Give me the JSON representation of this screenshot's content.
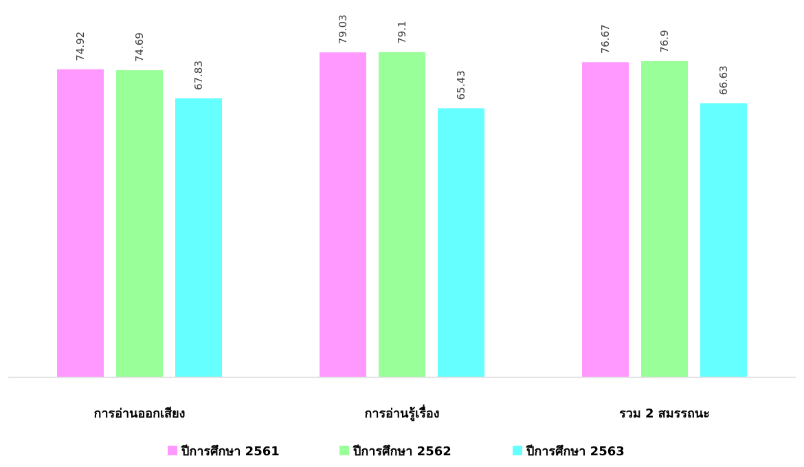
{
  "chart_data": {
    "type": "bar",
    "title": "",
    "xlabel": "",
    "ylabel": "",
    "categories": [
      "การอ่านออกเสียง",
      "การอ่านรู้เรื่อง",
      "รวม 2 สมรรถนะ"
    ],
    "series": [
      {
        "name": "ปีการศึกษา 2561",
        "values": [
          74.92,
          79.03,
          76.67
        ],
        "labels": [
          "74.92",
          "79.03",
          "76.67"
        ],
        "color": "#FF99FF"
      },
      {
        "name": "ปีการศึกษา 2562",
        "values": [
          74.69,
          79.1,
          76.9
        ],
        "labels": [
          "74.69",
          "79.1",
          "76.9"
        ],
        "color": "#99FF99"
      },
      {
        "name": "ปีการศึกษา 2563",
        "values": [
          67.83,
          65.43,
          66.63
        ],
        "labels": [
          "67.83",
          "65.43",
          "66.63"
        ],
        "color": "#66FFFF"
      }
    ],
    "ylim": [
      0,
      100
    ],
    "grid": false,
    "legend": "bottom",
    "axis_color": "#D9D9D9"
  }
}
